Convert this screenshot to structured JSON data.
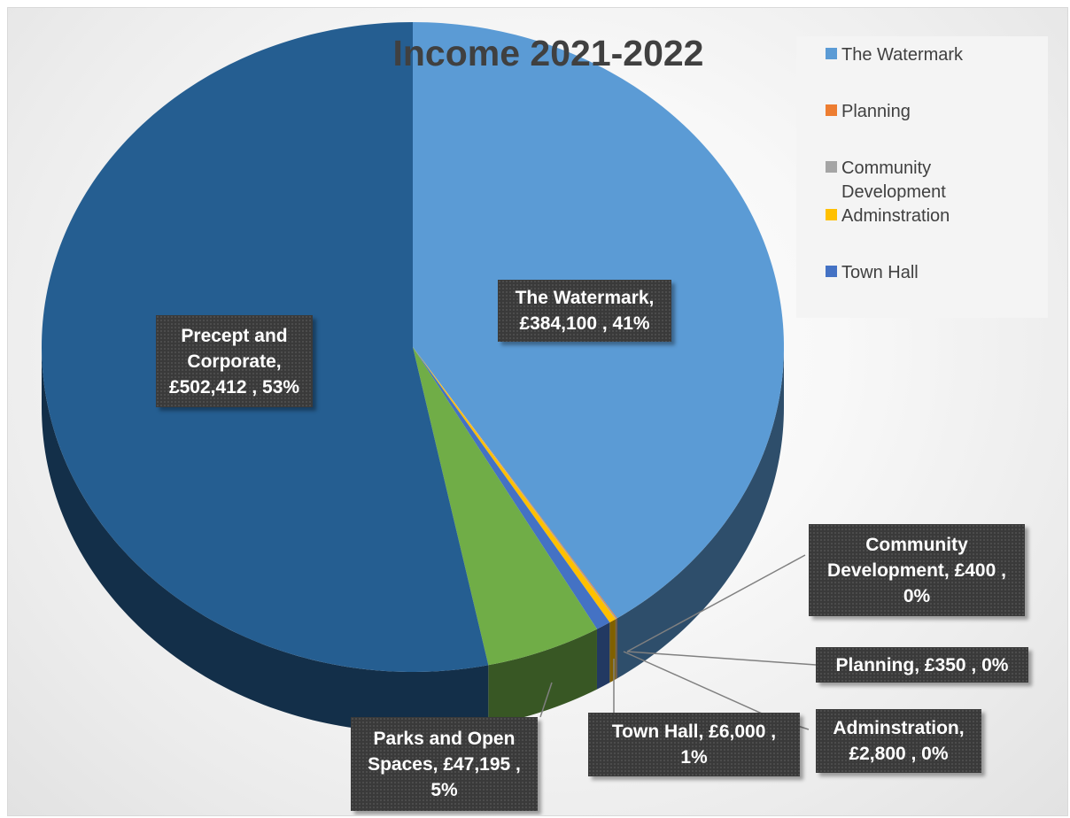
{
  "chart_data": {
    "type": "pie",
    "style": "3d-pie",
    "title": "Income 2021-2022",
    "legend_position": "top-right",
    "legend": [
      "The Watermark",
      "Planning",
      "Community Development",
      "Adminstration",
      "Town Hall"
    ],
    "slices": [
      {
        "name": "The Watermark",
        "value": 384100,
        "percent": "41%",
        "color": "#5b9bd5",
        "label": "The Watermark, £384,100 , 41%"
      },
      {
        "name": "Planning",
        "value": 350,
        "percent": "0%",
        "color": "#ed7d31",
        "label": "Planning,  £350 , 0%"
      },
      {
        "name": "Community Development",
        "value": 400,
        "percent": "0%",
        "color": "#a5a5a5",
        "label": "Community Development,  £400 , 0%"
      },
      {
        "name": "Adminstration",
        "value": 2800,
        "percent": "0%",
        "color": "#ffc000",
        "label": "Adminstration, £2,800 , 0%"
      },
      {
        "name": "Town Hall",
        "value": 6000,
        "percent": "1%",
        "color": "#4472c4",
        "label": "Town Hall,  £6,000 , 1%"
      },
      {
        "name": "Parks and Open Spaces",
        "value": 47195,
        "percent": "5%",
        "color": "#70ad47",
        "label": "Parks and Open Spaces,  £47,195 , 5%"
      },
      {
        "name": "Precept and Corporate",
        "value": 502412,
        "percent": "53%",
        "color": "#255e91",
        "label": "Precept and Corporate, £502,412 , 53%"
      }
    ]
  }
}
